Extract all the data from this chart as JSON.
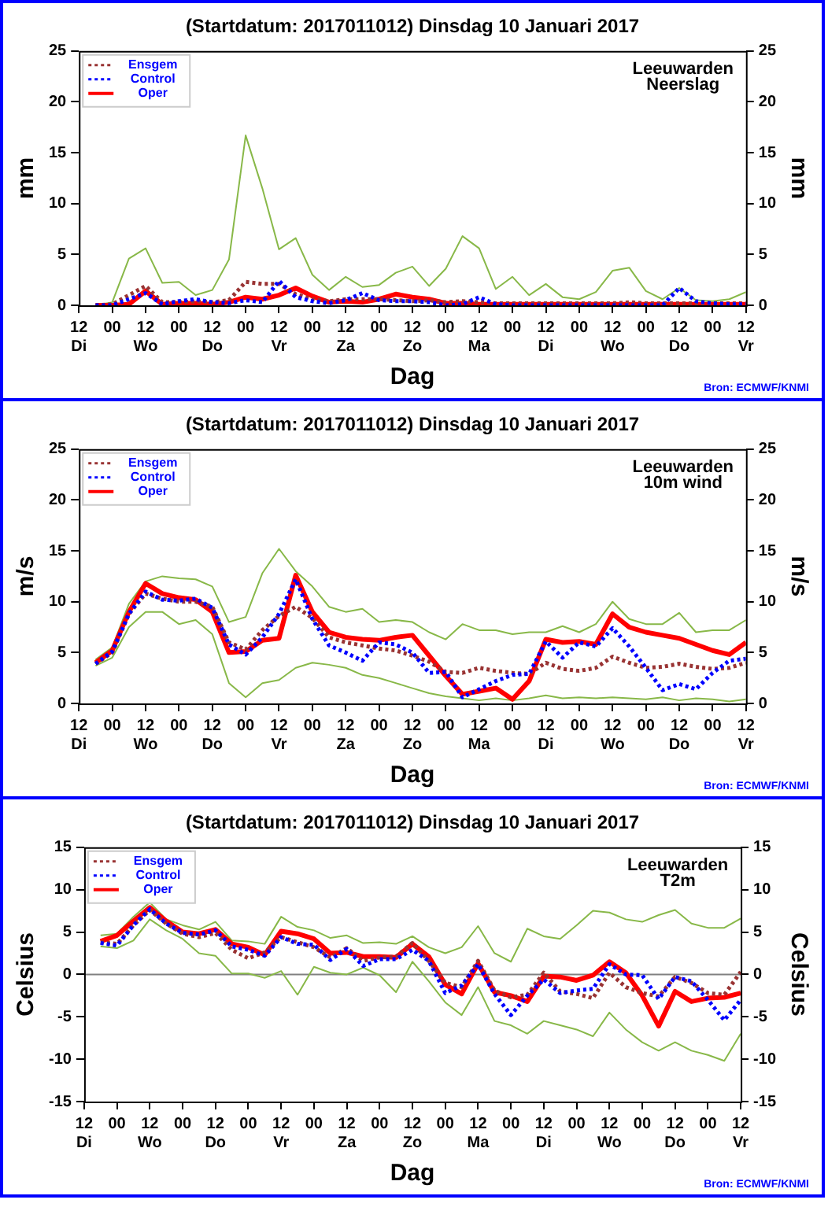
{
  "chart_data": [
    {
      "type": "line",
      "title": "(Startdatum: 2017011012) Dinsdag 10 Januari 2017",
      "xlabel": "Dag",
      "ylabel": "mm",
      "y2label": "mm",
      "annotations": [
        "Leeuwarden",
        "Neerslag",
        "Bron: ECMWF/KNMI"
      ],
      "x": [
        "2017-01-10T18:00",
        "2017-01-11T00:00",
        "2017-01-11T06:00",
        "2017-01-11T12:00",
        "2017-01-11T18:00",
        "2017-01-12T00:00",
        "2017-01-12T06:00",
        "2017-01-12T12:00",
        "2017-01-12T18:00",
        "2017-01-13T00:00",
        "2017-01-13T06:00",
        "2017-01-13T12:00",
        "2017-01-13T18:00",
        "2017-01-14T00:00",
        "2017-01-14T06:00",
        "2017-01-14T12:00",
        "2017-01-14T18:00",
        "2017-01-15T00:00",
        "2017-01-15T06:00",
        "2017-01-15T12:00",
        "2017-01-15T18:00",
        "2017-01-16T00:00",
        "2017-01-16T06:00",
        "2017-01-16T12:00",
        "2017-01-16T18:00",
        "2017-01-17T00:00",
        "2017-01-17T06:00",
        "2017-01-17T12:00",
        "2017-01-17T18:00",
        "2017-01-18T00:00",
        "2017-01-18T06:00",
        "2017-01-18T12:00",
        "2017-01-18T18:00",
        "2017-01-19T00:00",
        "2017-01-19T06:00",
        "2017-01-19T12:00",
        "2017-01-19T18:00",
        "2017-01-20T00:00",
        "2017-01-20T06:00",
        "2017-01-20T12:00"
      ],
      "xlim": [
        "2017-01-10T12:00",
        "2017-01-20T12:00"
      ],
      "xticks": [
        {
          "value": "2017-01-10T12:00",
          "label": "12\nDi"
        },
        {
          "value": "2017-01-11T00:00",
          "label": "00"
        },
        {
          "value": "2017-01-11T12:00",
          "label": "12\nWo"
        },
        {
          "value": "2017-01-12T00:00",
          "label": "00"
        },
        {
          "value": "2017-01-12T12:00",
          "label": "12\nDo"
        },
        {
          "value": "2017-01-13T00:00",
          "label": "00"
        },
        {
          "value": "2017-01-13T12:00",
          "label": "12\nVr"
        },
        {
          "value": "2017-01-14T00:00",
          "label": "00"
        },
        {
          "value": "2017-01-14T12:00",
          "label": "12\nZa"
        },
        {
          "value": "2017-01-15T00:00",
          "label": "00"
        },
        {
          "value": "2017-01-15T12:00",
          "label": "12\nZo"
        },
        {
          "value": "2017-01-16T00:00",
          "label": "00"
        },
        {
          "value": "2017-01-16T12:00",
          "label": "12\nMa"
        },
        {
          "value": "2017-01-17T00:00",
          "label": "00"
        },
        {
          "value": "2017-01-17T12:00",
          "label": "12\nDi"
        },
        {
          "value": "2017-01-18T00:00",
          "label": "00"
        },
        {
          "value": "2017-01-18T12:00",
          "label": "12\nWo"
        },
        {
          "value": "2017-01-19T00:00",
          "label": "00"
        },
        {
          "value": "2017-01-19T12:00",
          "label": "12\nDo"
        },
        {
          "value": "2017-01-20T00:00",
          "label": "00"
        },
        {
          "value": "2017-01-20T12:00",
          "label": "12\nVr"
        }
      ],
      "ylim": [
        0,
        25
      ],
      "yticks": [
        0,
        5,
        10,
        15,
        20,
        25
      ],
      "y2lim": [
        0,
        25
      ],
      "y2ticks": [
        0,
        5,
        10,
        15,
        20,
        25
      ],
      "legend": "top left",
      "series": [
        {
          "color": "#88b848",
          "line_style": "solid",
          "values": [
            0,
            0.3,
            4.6,
            5.6,
            2.2,
            2.3,
            1.0,
            1.5,
            4.5,
            16.7,
            11.5,
            5.5,
            6.6,
            3.0,
            1.5,
            2.8,
            1.8,
            2.0,
            3.2,
            3.8,
            1.9,
            3.6,
            6.8,
            5.6,
            1.6,
            2.8,
            1.0,
            2.1,
            0.8,
            0.6,
            1.3,
            3.4,
            3.7,
            1.4,
            0.6,
            1.7,
            0.5,
            0.4,
            0.6,
            1.3
          ]
        },
        {
          "name": "Ensgem",
          "color": "#993333",
          "line_style": "dotted",
          "values": [
            0,
            0.1,
            1.0,
            1.9,
            0.3,
            0.3,
            0.4,
            0.3,
            0.5,
            2.3,
            2.1,
            2.1,
            1.1,
            0.6,
            0.4,
            0.6,
            0.6,
            0.6,
            0.5,
            0.4,
            0.5,
            0.3,
            0.4,
            0.3,
            0.2,
            0.2,
            0.2,
            0.2,
            0.2,
            0.2,
            0.2,
            0.2,
            0.3,
            0.2,
            0.2,
            0.2,
            0.2,
            0.2,
            0.2,
            0.2
          ]
        },
        {
          "name": "Control",
          "color": "#0000ff",
          "line_style": "dotted",
          "values": [
            0,
            0,
            0.6,
            1.2,
            0.1,
            0.4,
            0.6,
            0.3,
            0.2,
            0.5,
            0.3,
            2.4,
            0.8,
            0.4,
            0.2,
            0.5,
            1.2,
            0.5,
            0.4,
            0.4,
            0.3,
            0,
            0.1,
            0.8,
            0.1,
            0,
            0,
            0,
            0,
            0,
            0,
            0,
            0,
            0,
            0,
            1.7,
            0.4,
            0.2,
            0.1,
            0.1
          ]
        },
        {
          "name": "Oper",
          "color": "#ff0000",
          "line_style": "solid",
          "values": [
            0,
            0,
            0.1,
            1.4,
            0.1,
            0.2,
            0.2,
            0.1,
            0.3,
            0.8,
            0.6,
            1.0,
            1.7,
            0.9,
            0.3,
            0.4,
            0.3,
            0.6,
            1.1,
            0.8,
            0.6,
            0.2,
            0.2,
            0.1,
            0.1,
            0.1,
            0.1,
            0.1,
            0.1,
            0.1,
            0.1,
            0.1,
            0.1,
            0.1,
            0.1,
            0.1,
            0.1,
            0.1,
            0.1,
            0.1
          ]
        }
      ]
    },
    {
      "type": "line",
      "title": "(Startdatum: 2017011012) Dinsdag 10 Januari 2017",
      "xlabel": "Dag",
      "ylabel": "m/s",
      "y2label": "m/s",
      "annotations": [
        "Leeuwarden",
        "10m wind",
        "Bron: ECMWF/KNMI"
      ],
      "x": [
        "2017-01-10T18:00",
        "2017-01-11T00:00",
        "2017-01-11T06:00",
        "2017-01-11T12:00",
        "2017-01-11T18:00",
        "2017-01-12T00:00",
        "2017-01-12T06:00",
        "2017-01-12T12:00",
        "2017-01-12T18:00",
        "2017-01-13T00:00",
        "2017-01-13T06:00",
        "2017-01-13T12:00",
        "2017-01-13T18:00",
        "2017-01-14T00:00",
        "2017-01-14T06:00",
        "2017-01-14T12:00",
        "2017-01-14T18:00",
        "2017-01-15T00:00",
        "2017-01-15T06:00",
        "2017-01-15T12:00",
        "2017-01-15T18:00",
        "2017-01-16T00:00",
        "2017-01-16T06:00",
        "2017-01-16T12:00",
        "2017-01-16T18:00",
        "2017-01-17T00:00",
        "2017-01-17T06:00",
        "2017-01-17T12:00",
        "2017-01-17T18:00",
        "2017-01-18T00:00",
        "2017-01-18T06:00",
        "2017-01-18T12:00",
        "2017-01-18T18:00",
        "2017-01-19T00:00",
        "2017-01-19T06:00",
        "2017-01-19T12:00",
        "2017-01-19T18:00",
        "2017-01-20T00:00",
        "2017-01-20T06:00",
        "2017-01-20T12:00"
      ],
      "xlim": [
        "2017-01-10T12:00",
        "2017-01-20T12:00"
      ],
      "xticks": [
        {
          "value": "2017-01-10T12:00",
          "label": "12\nDi"
        },
        {
          "value": "2017-01-11T00:00",
          "label": "00"
        },
        {
          "value": "2017-01-11T12:00",
          "label": "12\nWo"
        },
        {
          "value": "2017-01-12T00:00",
          "label": "00"
        },
        {
          "value": "2017-01-12T12:00",
          "label": "12\nDo"
        },
        {
          "value": "2017-01-13T00:00",
          "label": "00"
        },
        {
          "value": "2017-01-13T12:00",
          "label": "12\nVr"
        },
        {
          "value": "2017-01-14T00:00",
          "label": "00"
        },
        {
          "value": "2017-01-14T12:00",
          "label": "12\nZa"
        },
        {
          "value": "2017-01-15T00:00",
          "label": "00"
        },
        {
          "value": "2017-01-15T12:00",
          "label": "12\nZo"
        },
        {
          "value": "2017-01-16T00:00",
          "label": "00"
        },
        {
          "value": "2017-01-16T12:00",
          "label": "12\nMa"
        },
        {
          "value": "2017-01-17T00:00",
          "label": "00"
        },
        {
          "value": "2017-01-17T12:00",
          "label": "12\nDi"
        },
        {
          "value": "2017-01-18T00:00",
          "label": "00"
        },
        {
          "value": "2017-01-18T12:00",
          "label": "12\nWo"
        },
        {
          "value": "2017-01-19T00:00",
          "label": "00"
        },
        {
          "value": "2017-01-19T12:00",
          "label": "12\nDo"
        },
        {
          "value": "2017-01-20T00:00",
          "label": "00"
        },
        {
          "value": "2017-01-20T12:00",
          "label": "12\nVr"
        }
      ],
      "ylim": [
        0,
        25
      ],
      "yticks": [
        0,
        5,
        10,
        15,
        20,
        25
      ],
      "y2lim": [
        0,
        25
      ],
      "y2ticks": [
        0,
        5,
        10,
        15,
        20,
        25
      ],
      "legend": "top left",
      "series": [
        {
          "color": "#88b848",
          "line_style": "solid",
          "values": [
            4.3,
            5.5,
            9.8,
            12.0,
            12.5,
            12.3,
            12.2,
            11.5,
            8.0,
            8.5,
            12.8,
            15.2,
            13.0,
            11.5,
            9.5,
            9.0,
            9.3,
            8.0,
            8.2,
            8.0,
            7.0,
            6.3,
            7.8,
            7.2,
            7.2,
            6.8,
            7.0,
            7.0,
            7.6,
            7.0,
            7.8,
            10.0,
            8.3,
            7.8,
            7.8,
            8.9,
            7.0,
            7.2,
            7.2,
            8.2
          ]
        },
        {
          "color": "#88b848",
          "line_style": "solid",
          "values": [
            3.7,
            4.5,
            7.5,
            9.0,
            9.0,
            7.8,
            8.2,
            6.8,
            2.0,
            0.6,
            2.0,
            2.3,
            3.5,
            4.0,
            3.8,
            3.5,
            2.8,
            2.5,
            2.0,
            1.5,
            1.0,
            0.7,
            0.5,
            0.3,
            0.5,
            0.3,
            0.5,
            0.8,
            0.5,
            0.6,
            0.5,
            0.6,
            0.5,
            0.4,
            0.6,
            0.3,
            0.5,
            0.4,
            0.2,
            0.4
          ]
        },
        {
          "name": "Ensgem",
          "color": "#993333",
          "line_style": "dotted",
          "values": [
            3.9,
            5.0,
            8.8,
            10.8,
            10.3,
            10.0,
            10.0,
            9.5,
            6.0,
            5.3,
            7.2,
            8.6,
            9.5,
            8.4,
            6.5,
            6.0,
            5.7,
            5.4,
            5.2,
            4.7,
            4.1,
            3.1,
            3.0,
            3.5,
            3.2,
            3.0,
            2.9,
            4.0,
            3.4,
            3.2,
            3.5,
            4.6,
            4.0,
            3.5,
            3.6,
            3.9,
            3.6,
            3.4,
            3.5,
            4.0
          ]
        },
        {
          "name": "Control",
          "color": "#0000ff",
          "line_style": "dotted",
          "values": [
            3.9,
            5.1,
            8.8,
            11.0,
            10.2,
            10.1,
            10.3,
            9.4,
            5.8,
            4.8,
            6.5,
            8.8,
            12.2,
            8.3,
            5.7,
            5.0,
            4.2,
            6.0,
            5.8,
            5.0,
            3.0,
            3.1,
            0.6,
            1.4,
            2.2,
            2.8,
            2.9,
            6.1,
            4.5,
            6.0,
            5.6,
            7.4,
            5.6,
            3.5,
            1.3,
            1.9,
            1.4,
            3.0,
            4.2,
            4.4
          ]
        },
        {
          "name": "Oper",
          "color": "#ff0000",
          "line_style": "solid",
          "values": [
            4.0,
            5.2,
            9.0,
            11.8,
            10.8,
            10.4,
            10.2,
            9.0,
            5.0,
            5.1,
            6.2,
            6.4,
            12.6,
            9.0,
            7.0,
            6.5,
            6.3,
            6.2,
            6.5,
            6.7,
            4.7,
            2.7,
            0.9,
            1.2,
            1.5,
            0.4,
            2.2,
            6.3,
            6.0,
            6.1,
            5.8,
            8.8,
            7.5,
            7.0,
            6.7,
            6.4,
            5.8,
            5.2,
            4.8,
            6.0
          ]
        }
      ]
    },
    {
      "type": "line",
      "title": "(Startdatum: 2017011012) Dinsdag 10 Januari 2017",
      "xlabel": "Dag",
      "ylabel": "Celsius",
      "y2label": "Celsius",
      "annotations": [
        "Leeuwarden",
        "T2m",
        "Bron: ECMWF/KNMI"
      ],
      "x": [
        "2017-01-10T18:00",
        "2017-01-11T00:00",
        "2017-01-11T06:00",
        "2017-01-11T12:00",
        "2017-01-11T18:00",
        "2017-01-12T00:00",
        "2017-01-12T06:00",
        "2017-01-12T12:00",
        "2017-01-12T18:00",
        "2017-01-13T00:00",
        "2017-01-13T06:00",
        "2017-01-13T12:00",
        "2017-01-13T18:00",
        "2017-01-14T00:00",
        "2017-01-14T06:00",
        "2017-01-14T12:00",
        "2017-01-14T18:00",
        "2017-01-15T00:00",
        "2017-01-15T06:00",
        "2017-01-15T12:00",
        "2017-01-15T18:00",
        "2017-01-16T00:00",
        "2017-01-16T06:00",
        "2017-01-16T12:00",
        "2017-01-16T18:00",
        "2017-01-17T00:00",
        "2017-01-17T06:00",
        "2017-01-17T12:00",
        "2017-01-17T18:00",
        "2017-01-18T00:00",
        "2017-01-18T06:00",
        "2017-01-18T12:00",
        "2017-01-18T18:00",
        "2017-01-19T00:00",
        "2017-01-19T06:00",
        "2017-01-19T12:00",
        "2017-01-19T18:00",
        "2017-01-20T00:00",
        "2017-01-20T06:00",
        "2017-01-20T12:00"
      ],
      "xlim": [
        "2017-01-10T12:00",
        "2017-01-20T12:00"
      ],
      "xticks": [
        {
          "value": "2017-01-10T12:00",
          "label": "12\nDi"
        },
        {
          "value": "2017-01-11T00:00",
          "label": "00"
        },
        {
          "value": "2017-01-11T12:00",
          "label": "12\nWo"
        },
        {
          "value": "2017-01-12T00:00",
          "label": "00"
        },
        {
          "value": "2017-01-12T12:00",
          "label": "12\nDo"
        },
        {
          "value": "2017-01-13T00:00",
          "label": "00"
        },
        {
          "value": "2017-01-13T12:00",
          "label": "12\nVr"
        },
        {
          "value": "2017-01-14T00:00",
          "label": "00"
        },
        {
          "value": "2017-01-14T12:00",
          "label": "12\nZa"
        },
        {
          "value": "2017-01-15T00:00",
          "label": "00"
        },
        {
          "value": "2017-01-15T12:00",
          "label": "12\nZo"
        },
        {
          "value": "2017-01-16T00:00",
          "label": "00"
        },
        {
          "value": "2017-01-16T12:00",
          "label": "12\nMa"
        },
        {
          "value": "2017-01-17T00:00",
          "label": "00"
        },
        {
          "value": "2017-01-17T12:00",
          "label": "12\nDi"
        },
        {
          "value": "2017-01-18T00:00",
          "label": "00"
        },
        {
          "value": "2017-01-18T12:00",
          "label": "12\nWo"
        },
        {
          "value": "2017-01-19T00:00",
          "label": "00"
        },
        {
          "value": "2017-01-19T12:00",
          "label": "12\nDo"
        },
        {
          "value": "2017-01-20T00:00",
          "label": "00"
        },
        {
          "value": "2017-01-20T12:00",
          "label": "12\nVr"
        }
      ],
      "ylim": [
        -15,
        15
      ],
      "yticks": [
        -15,
        -10,
        -5,
        0,
        5,
        10,
        15
      ],
      "y2lim": [
        -15,
        15
      ],
      "y2ticks": [
        -15,
        -10,
        -5,
        0,
        5,
        10,
        15
      ],
      "legend": "top left",
      "ref_lines": [
        {
          "axis": "y",
          "value": 0,
          "color": "#808080"
        }
      ],
      "series": [
        {
          "color": "#88b848",
          "line_style": "solid",
          "values": [
            4.6,
            4.8,
            6.8,
            8.5,
            6.5,
            5.8,
            5.3,
            6.2,
            4.0,
            3.9,
            3.6,
            6.8,
            5.6,
            5.2,
            4.3,
            4.6,
            3.7,
            3.8,
            3.6,
            4.5,
            3.2,
            2.5,
            3.2,
            5.7,
            2.5,
            1.5,
            5.4,
            4.5,
            4.2,
            5.8,
            7.5,
            7.3,
            6.5,
            6.2,
            7.0,
            7.6,
            6.0,
            5.5,
            5.5,
            6.6
          ]
        },
        {
          "color": "#88b848",
          "line_style": "solid",
          "values": [
            3.3,
            3.1,
            4.0,
            6.5,
            5.2,
            4.2,
            2.5,
            2.2,
            0.1,
            0.1,
            -0.4,
            0.4,
            -2.4,
            0.9,
            0.2,
            0.0,
            0.8,
            -0.1,
            -2.1,
            1.5,
            -0.8,
            -3.3,
            -4.8,
            -1.5,
            -5.5,
            -6.0,
            -7.0,
            -5.5,
            -6.0,
            -6.5,
            -7.3,
            -4.5,
            -6.5,
            -8.0,
            -9.0,
            -8.0,
            -9.0,
            -9.5,
            -10.2,
            -7.0
          ]
        },
        {
          "name": "Ensgem",
          "color": "#993333",
          "line_style": "dotted",
          "values": [
            3.8,
            3.6,
            5.8,
            7.6,
            6.0,
            4.8,
            4.4,
            4.9,
            2.9,
            1.9,
            2.6,
            4.4,
            3.8,
            3.2,
            2.0,
            3.1,
            1.6,
            2.0,
            2.1,
            3.7,
            1.6,
            -1.0,
            -1.5,
            1.6,
            -1.9,
            -2.7,
            -2.4,
            0.2,
            -2.0,
            -2.3,
            -2.8,
            0.2,
            -1.5,
            -2.2,
            -2.6,
            -0.3,
            -1.0,
            -2.2,
            -2.4,
            0.3
          ]
        },
        {
          "name": "Control",
          "color": "#0000ff",
          "line_style": "dotted",
          "values": [
            3.7,
            3.4,
            5.8,
            7.7,
            6.0,
            4.9,
            4.7,
            5.2,
            3.3,
            2.9,
            2.2,
            4.4,
            3.6,
            3.5,
            1.7,
            3.0,
            1.0,
            1.8,
            1.8,
            2.9,
            1.6,
            -2.2,
            -1.3,
            1.2,
            -2.3,
            -4.8,
            -2.5,
            -0.6,
            -2.2,
            -1.9,
            -1.7,
            1.2,
            0.0,
            -0.1,
            -2.9,
            -0.3,
            -0.8,
            -3.0,
            -5.4,
            -3.0
          ]
        },
        {
          "name": "Oper",
          "color": "#ff0000",
          "line_style": "solid",
          "values": [
            3.9,
            4.6,
            6.3,
            7.9,
            6.3,
            5.0,
            4.8,
            5.3,
            3.6,
            3.2,
            2.3,
            5.1,
            4.8,
            4.2,
            2.5,
            2.6,
            2.1,
            2.1,
            2.0,
            3.6,
            2.1,
            -1.2,
            -2.3,
            1.3,
            -2.1,
            -2.5,
            -3.2,
            -0.2,
            -0.3,
            -0.7,
            -0.1,
            1.5,
            0.2,
            -2.5,
            -6.1,
            -2.0,
            -3.2,
            -2.8,
            -2.7,
            -2.2
          ]
        }
      ]
    }
  ]
}
